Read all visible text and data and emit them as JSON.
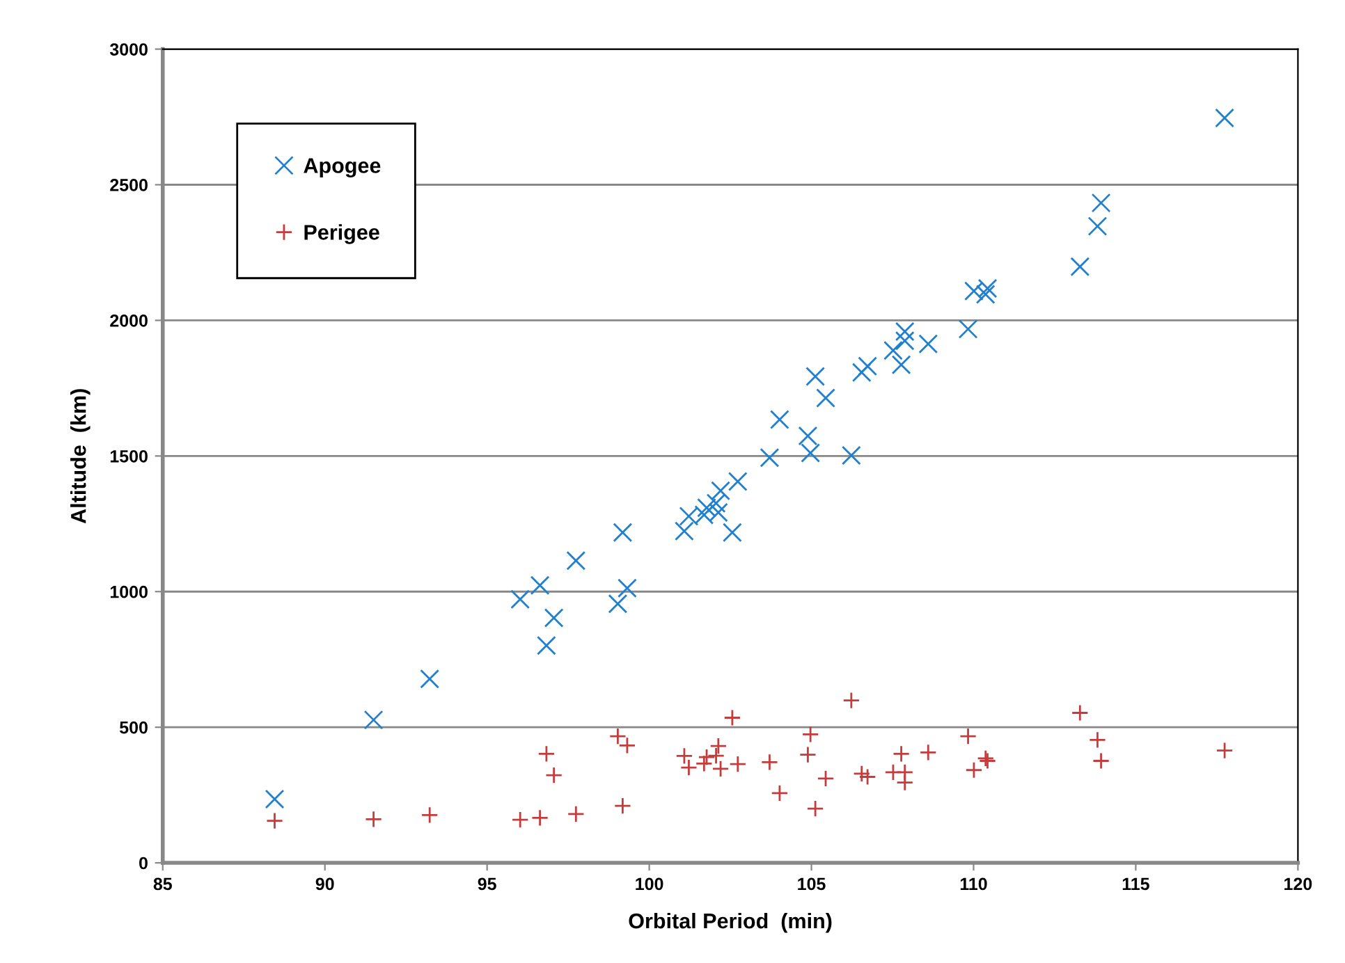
{
  "chart_data": {
    "type": "scatter",
    "xlabel": "Orbital Period  (min)",
    "ylabel": "Altitude  (km)",
    "x": [
      88.45,
      91.5,
      93.23,
      96.02,
      96.63,
      96.83,
      97.06,
      97.74,
      99.03,
      99.18,
      99.32,
      101.08,
      101.22,
      101.69,
      101.77,
      102.06,
      102.13,
      102.2,
      102.56,
      102.73,
      103.71,
      104.02,
      104.89,
      104.97,
      105.12,
      105.44,
      106.23,
      106.55,
      106.73,
      107.52,
      107.77,
      107.88,
      107.88,
      108.6,
      109.83,
      110.01,
      110.37,
      110.43,
      113.28,
      113.82,
      113.93,
      117.74
    ],
    "series": [
      {
        "name": "Apogee",
        "color": "#1f7fd0",
        "marker": "x",
        "values": [
          235,
          527,
          678,
          972,
          1023,
          801,
          903,
          1114,
          955,
          1218,
          1013,
          1223,
          1278,
          1283,
          1309,
          1326,
          1292,
          1372,
          1218,
          1406,
          1494,
          1634,
          1574,
          1511,
          1793,
          1714,
          1502,
          1808,
          1831,
          1889,
          1836,
          1959,
          1925,
          1913,
          1968,
          2108,
          2096,
          2118,
          2198,
          2347,
          2433,
          2746
        ]
      },
      {
        "name": "Perigee",
        "color": "#c43c3c",
        "marker": "plus",
        "values": [
          155,
          161,
          176,
          159,
          166,
          402,
          323,
          180,
          467,
          210,
          433,
          394,
          351,
          366,
          390,
          395,
          431,
          347,
          535,
          364,
          371,
          257,
          399,
          474,
          200,
          311,
          599,
          329,
          317,
          334,
          402,
          334,
          296,
          407,
          467,
          342,
          385,
          376,
          553,
          453,
          376,
          414
        ]
      }
    ],
    "xlim": [
      85,
      120
    ],
    "xticks": [
      85,
      90,
      95,
      100,
      105,
      110,
      115,
      120
    ],
    "ylim": [
      0,
      3000
    ],
    "yticks": [
      0,
      500,
      1000,
      1500,
      2000,
      2500,
      3000
    ],
    "grid": "y",
    "legend": "top left"
  }
}
